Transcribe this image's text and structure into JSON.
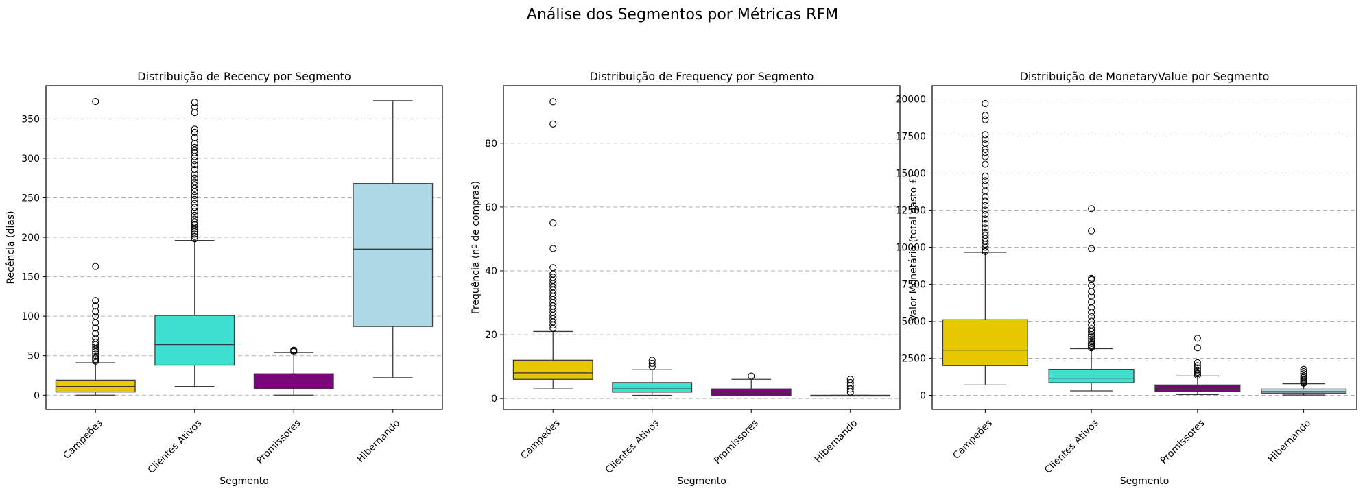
{
  "figure_title": "Análise dos Segmentos por Métricas RFM",
  "chart_data": [
    {
      "type": "box",
      "title": "Distribuição de Recency por Segmento",
      "xlabel": "Segmento",
      "ylabel": "Recência (dias)",
      "ylim": [
        -18,
        392
      ],
      "yticks": [
        0,
        50,
        100,
        150,
        200,
        250,
        300,
        350
      ],
      "grid": "y-dashed",
      "categories": [
        "Campeões",
        "Clientes Ativos",
        "Promissores",
        "Hibernando"
      ],
      "boxes": [
        {
          "category": "Campeões",
          "color": "#E6C800",
          "whisker_low": 0,
          "q1": 4,
          "median": 11,
          "q3": 19,
          "whisker_high": 41,
          "outliers": [
            43,
            45,
            47,
            49,
            52,
            55,
            58,
            61,
            64,
            67,
            72,
            78,
            85,
            92,
            100,
            106,
            113,
            120,
            163,
            372
          ]
        },
        {
          "category": "Clientes Ativos",
          "color": "#40E0D0",
          "whisker_low": 11,
          "q1": 38,
          "median": 64,
          "q3": 101,
          "whisker_high": 196,
          "outliers": [
            198,
            201,
            204,
            207,
            210,
            213,
            216,
            219,
            223,
            228,
            233,
            238,
            243,
            248,
            253,
            258,
            262,
            266,
            270,
            275,
            280,
            286,
            292,
            297,
            302,
            307,
            310,
            314,
            319,
            326,
            333,
            337,
            358,
            365,
            371
          ]
        },
        {
          "category": "Promissores",
          "color": "#800080",
          "whisker_low": 0,
          "q1": 8,
          "median": 18,
          "q3": 27,
          "whisker_high": 54,
          "outliers": [
            55,
            56,
            57
          ]
        },
        {
          "category": "Hibernando",
          "color": "#ADD8E6",
          "whisker_low": 22,
          "q1": 87,
          "median": 185,
          "q3": 268,
          "whisker_high": 373,
          "outliers": []
        }
      ]
    },
    {
      "type": "box",
      "title": "Distribuição de Frequency por Segmento",
      "xlabel": "Segmento",
      "ylabel": "Frequência (nº de compras)",
      "ylim": [
        -3.4,
        98
      ],
      "yticks": [
        0,
        20,
        40,
        60,
        80
      ],
      "grid": "y-dashed",
      "categories": [
        "Campeões",
        "Clientes Ativos",
        "Promissores",
        "Hibernando"
      ],
      "boxes": [
        {
          "category": "Campeões",
          "color": "#E6C800",
          "whisker_low": 3,
          "q1": 6,
          "median": 8,
          "q3": 12,
          "whisker_high": 21,
          "outliers": [
            22,
            23,
            24,
            25,
            26,
            27,
            28,
            29,
            30,
            31,
            32,
            33,
            34,
            35,
            36,
            37,
            38,
            39,
            41,
            47,
            55,
            86,
            93
          ]
        },
        {
          "category": "Clientes Ativos",
          "color": "#40E0D0",
          "whisker_low": 1,
          "q1": 2,
          "median": 3,
          "q3": 5,
          "whisker_high": 9,
          "outliers": [
            10,
            11,
            12
          ]
        },
        {
          "category": "Promissores",
          "color": "#800080",
          "whisker_low": 1,
          "q1": 1,
          "median": 2,
          "q3": 3,
          "whisker_high": 6,
          "outliers": [
            7
          ]
        },
        {
          "category": "Hibernando",
          "color": "#ADD8E6",
          "whisker_low": 1,
          "q1": 1,
          "median": 1,
          "q3": 1,
          "whisker_high": 1,
          "outliers": [
            2,
            3,
            4,
            5,
            6
          ]
        }
      ]
    },
    {
      "type": "box",
      "title": "Distribuição de MonetaryValue por Segmento",
      "xlabel": "Segmento",
      "ylabel": "Valor Monetário (total gasto £)",
      "ylim": [
        -950,
        20900
      ],
      "yticks": [
        0,
        2500,
        5000,
        7500,
        10000,
        12500,
        15000,
        17500,
        20000
      ],
      "grid": "y-dashed",
      "categories": [
        "Campeões",
        "Clientes Ativos",
        "Promissores",
        "Hibernando"
      ],
      "boxes": [
        {
          "category": "Campeões",
          "color": "#E6C800",
          "whisker_low": 700,
          "q1": 2000,
          "median": 3050,
          "q3": 5100,
          "whisker_high": 9650,
          "outliers": [
            9700,
            9800,
            10000,
            10200,
            10400,
            10600,
            10800,
            11000,
            11300,
            11600,
            11900,
            12200,
            12500,
            12800,
            13100,
            13400,
            13800,
            14200,
            14500,
            14800,
            15600,
            16100,
            16400,
            16600,
            17000,
            17300,
            17600,
            18600,
            18900,
            19700
          ]
        },
        {
          "category": "Clientes Ativos",
          "color": "#40E0D0",
          "whisker_low": 300,
          "q1": 850,
          "median": 1150,
          "q3": 1750,
          "whisker_high": 3150,
          "outliers": [
            3200,
            3300,
            3400,
            3500,
            3650,
            3800,
            3950,
            4100,
            4300,
            4500,
            4750,
            5000,
            5300,
            5600,
            5900,
            6300,
            6700,
            7000,
            7400,
            7800,
            7900,
            9900,
            11100,
            12600
          ]
        },
        {
          "category": "Promissores",
          "color": "#800080",
          "whisker_low": 50,
          "q1": 250,
          "median": 450,
          "q3": 700,
          "whisker_high": 1300,
          "outliers": [
            1350,
            1450,
            1550,
            1700,
            1850,
            2000,
            2200,
            3200,
            3850
          ]
        },
        {
          "category": "Hibernando",
          "color": "#ADD8E6",
          "whisker_low": 20,
          "q1": 150,
          "median": 250,
          "q3": 420,
          "whisker_high": 780,
          "outliers": [
            820,
            880,
            950,
            1020,
            1100,
            1200,
            1300,
            1450,
            1600,
            1750
          ]
        }
      ]
    }
  ]
}
